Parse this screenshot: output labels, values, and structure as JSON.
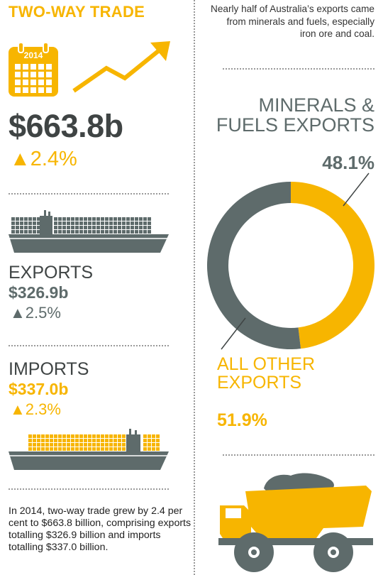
{
  "left": {
    "title": "TWO-WAY TRADE",
    "calendar_year": "2014",
    "total_value": "$663.8b",
    "total_change": "▲2.4%",
    "exports": {
      "label": "EXPORTS",
      "value": "$326.9b",
      "change": "▲2.5%"
    },
    "imports": {
      "label": "IMPORTS",
      "value": "$337.0b",
      "change": "▲2.3%"
    },
    "summary": "In 2014, two-way trade grew by 2.4 per cent to $663.8 billion, comprising exports totalling $326.9 billion and imports totalling $337.0 billion."
  },
  "right": {
    "intro": "Nearly half of Australia’s exports came from minerals and fuels, especially iron ore and coal.",
    "minerals_label": "MINERALS & FUELS EXPORTS",
    "minerals_pct": "48.1%",
    "other_label": "ALL OTHER EXPORTS",
    "other_pct": "51.9%"
  },
  "chart_data": {
    "type": "pie",
    "categories": [
      "MINERALS & FUELS EXPORTS",
      "ALL OTHER EXPORTS"
    ],
    "values": [
      48.1,
      51.9
    ],
    "colors": [
      "#f7b500",
      "#5e6b6b"
    ]
  },
  "colors": {
    "accent": "#f7b500",
    "slate": "#5e6b6b",
    "text": "#3f4444"
  },
  "icons": [
    "calendar-icon",
    "trend-arrow-icon",
    "export-ship-icon",
    "import-ship-icon",
    "mining-truck-icon"
  ]
}
